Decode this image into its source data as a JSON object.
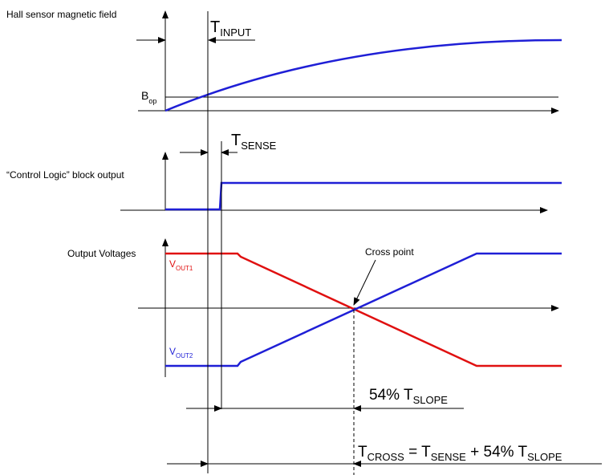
{
  "labels": {
    "hall": "Hall sensor magnetic field",
    "control": "“Control Logic” block output",
    "output": "Output Voltages",
    "bop_main": "B",
    "bop_sub": "op",
    "vout1_main": "V",
    "vout1_sub": "OUT1",
    "vout2_main": "V",
    "vout2_sub": "OUT2",
    "cross_point": "Cross point",
    "t_input_main": "T",
    "t_input_sub": "INPUT",
    "t_sense_main": "T",
    "t_sense_sub": "SENSE",
    "slope_prefix": "54% T",
    "slope_sub": "SLOPE",
    "eq_t": "T",
    "eq_cross_sub": "CROSS",
    "eq_mid": " = T",
    "eq_sense_sub": "SENSE",
    "eq_plus": " + 54% T",
    "eq_slope_sub": "SLOPE"
  },
  "colors": {
    "vout1": "#e01010",
    "vout2": "#1f1fd6",
    "axis": "#000000"
  }
}
